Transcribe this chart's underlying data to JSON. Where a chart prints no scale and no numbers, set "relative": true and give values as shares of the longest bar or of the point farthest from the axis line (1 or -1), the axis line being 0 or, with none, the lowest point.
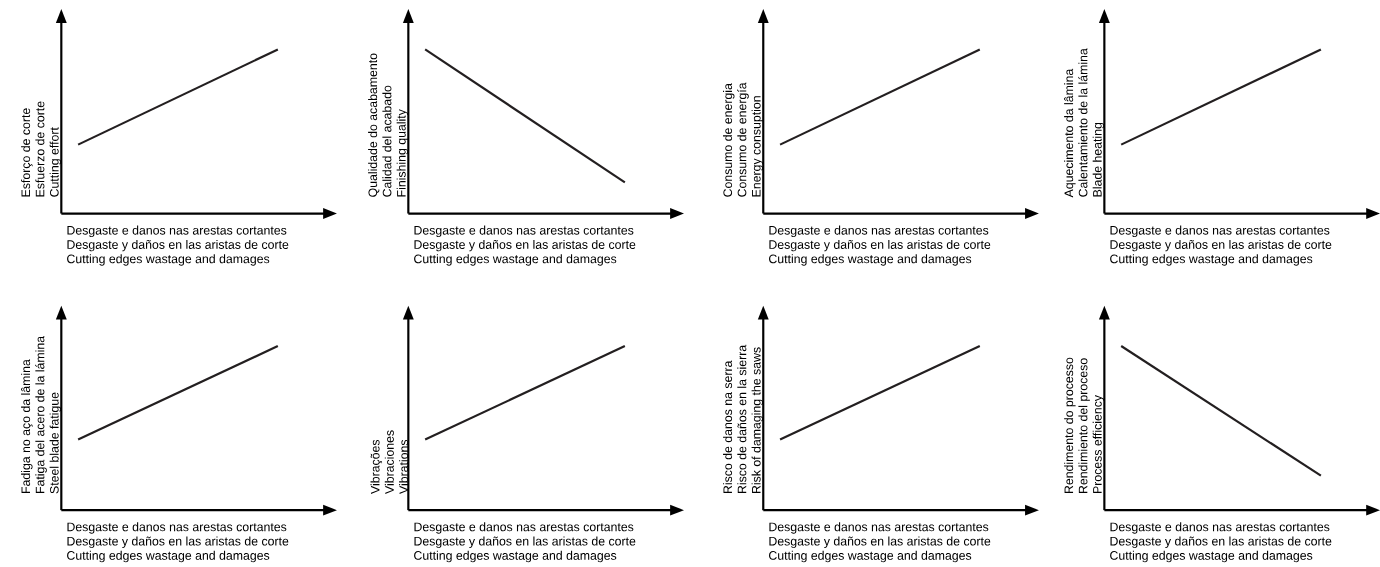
{
  "chart_data": [
    {
      "type": "line",
      "relative": true,
      "categories": [
        null,
        null
      ],
      "values": [
        0.42,
        1
      ],
      "color": "#231f20",
      "ylabel": [
        "Esforço de corte",
        "Esfuerzo de corte",
        "Cutting effort"
      ],
      "xlabel": [
        "Desgaste e danos nas arestas cortantes",
        "Desgaste y daños en las aristas de corte",
        "Cutting edges wastage and damages"
      ]
    },
    {
      "type": "line",
      "relative": true,
      "categories": [
        null,
        null
      ],
      "values": [
        1,
        0.19
      ],
      "color": "#231f20",
      "ylabel": [
        "Qualidade do acabamento",
        "Calidad del acabado",
        "Finishing quality"
      ],
      "xlabel": [
        "Desgaste e danos nas arestas cortantes",
        "Desgaste y daños en las aristas de corte",
        "Cutting edges wastage and damages"
      ]
    },
    {
      "type": "line",
      "relative": true,
      "categories": [
        null,
        null
      ],
      "values": [
        0.42,
        1
      ],
      "color": "#231f20",
      "ylabel": [
        "Consumo de energia",
        "Consumo de energía",
        "Energy consuption"
      ],
      "xlabel": [
        "Desgaste e danos nas arestas cortantes",
        "Desgaste y daños en las aristas de corte",
        "Cutting edges wastage and damages"
      ]
    },
    {
      "type": "line",
      "relative": true,
      "categories": [
        null,
        null
      ],
      "values": [
        0.42,
        1
      ],
      "color": "#231f20",
      "ylabel": [
        "Aquecimento da lâmina",
        "Calentamiento de la lámina",
        "Blade heating"
      ],
      "xlabel": [
        "Desgaste e danos nas arestas cortantes",
        "Desgaste y daños en las aristas de corte",
        "Cutting edges wastage and damages"
      ]
    },
    {
      "type": "line",
      "relative": true,
      "categories": [
        null,
        null
      ],
      "values": [
        0.43,
        1
      ],
      "color": "#231f20",
      "ylabel": [
        "Fadiga no aço da lâmina",
        "Fatiga del acero de la lámina",
        "Steel blade fatigue"
      ],
      "xlabel": [
        "Desgaste e danos nas arestas cortantes",
        "Desgaste y daños en las aristas de corte",
        "Cutting edges wastage and damages"
      ]
    },
    {
      "type": "line",
      "relative": true,
      "categories": [
        null,
        null
      ],
      "values": [
        0.43,
        1
      ],
      "color": "#231f20",
      "ylabel": [
        "Vibrações",
        "Vibraciones",
        "Vibrations"
      ],
      "xlabel": [
        "Desgaste e danos nas arestas cortantes",
        "Desgaste y daños en las aristas de corte",
        "Cutting edges wastage and damages"
      ]
    },
    {
      "type": "line",
      "relative": true,
      "categories": [
        null,
        null
      ],
      "values": [
        0.43,
        1
      ],
      "color": "#231f20",
      "ylabel": [
        "Risco de danos na serra",
        "Risco de daños en la sierra",
        "Risk of damaging the saws"
      ],
      "xlabel": [
        "Desgaste e danos nas arestas cortantes",
        "Desgaste y daños en las aristas de corte",
        "Cutting edges wastage and damages"
      ]
    },
    {
      "type": "line",
      "relative": true,
      "categories": [
        null,
        null
      ],
      "values": [
        1,
        0.21
      ],
      "color": "#231f20",
      "ylabel": [
        "Rendimento do processo",
        "Rendimiento del proceso",
        "Process efficiency"
      ],
      "xlabel": [
        "Desgaste e danos nas arestas cortantes",
        "Desgaste y daños en las aristas de corte",
        "Cutting edges wastage and damages"
      ]
    }
  ]
}
